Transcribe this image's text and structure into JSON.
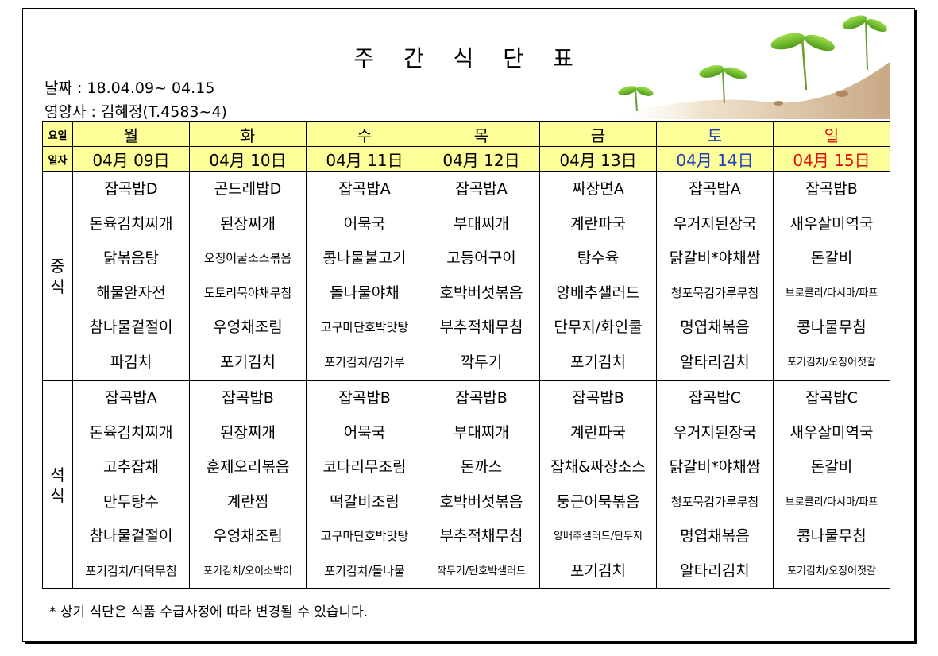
{
  "title": "주 간 식 단 표",
  "date_line": "날짜 : 18.04.09~ 04.15",
  "nutritionist_line": "영양사 : 김혜정(T.4583~4)",
  "row_labels": {
    "day": "요일",
    "date": "일자"
  },
  "days": [
    {
      "day": "월",
      "date": "04月 09日"
    },
    {
      "day": "화",
      "date": "04月 10日"
    },
    {
      "day": "수",
      "date": "04月 11日"
    },
    {
      "day": "목",
      "date": "04月 12日"
    },
    {
      "day": "금",
      "date": "04月 13日"
    },
    {
      "day": "토",
      "date": "04月 14日"
    },
    {
      "day": "일",
      "date": "04月 15日"
    }
  ],
  "colors": {
    "header_bg": "#ffff99",
    "saturday": "#1f3fbf",
    "sunday": "#e01010"
  },
  "lunch": {
    "label": "중\n식",
    "menus": [
      [
        "잡곡밥D",
        "돈육김치찌개",
        "닭볶음탕",
        "해물완자전",
        "참나물겉절이",
        "파김치"
      ],
      [
        "곤드레밥D",
        "된장찌개",
        "오징어굴소스볶음",
        "도토리묵야채무침",
        "우엉채조림",
        "포기김치"
      ],
      [
        "잡곡밥A",
        "어묵국",
        "콩나물불고기",
        "돌나물야채",
        "고구마단호박맛탕",
        "포기김치/김가루"
      ],
      [
        "잡곡밥A",
        "부대찌개",
        "고등어구이",
        "호박버섯볶음",
        "부추적채무침",
        "깍두기"
      ],
      [
        "짜장면A",
        "계란파국",
        "탕수육",
        "양배추샐러드",
        "단무지/화인쿨",
        "포기김치"
      ],
      [
        "잡곡밥A",
        "우거지된장국",
        "닭갈비*야채쌈",
        "청포묵김가루무침",
        "명엽채볶음",
        "알타리김치"
      ],
      [
        "잡곡밥B",
        "새우살미역국",
        "돈갈비",
        "브로콜리/다시마/파프",
        "콩나물무침",
        "포기김치/오징어젓갈"
      ]
    ]
  },
  "dinner": {
    "label": "석\n식",
    "menus": [
      [
        "잡곡밥A",
        "돈육김치찌개",
        "고추잡채",
        "만두탕수",
        "참나물겉절이",
        "포기김치/더덕무침"
      ],
      [
        "잡곡밥B",
        "된장찌개",
        "훈제오리볶음",
        "계란찜",
        "우엉채조림",
        "포기김치/오이소박이"
      ],
      [
        "잡곡밥B",
        "어묵국",
        "코다리무조림",
        "떡갈비조림",
        "고구마단호박맛탕",
        "포기김치/돌나물"
      ],
      [
        "잡곡밥B",
        "부대찌개",
        "돈까스",
        "호박버섯볶음",
        "부추적채무침",
        "깍두기/단호박샐러드"
      ],
      [
        "잡곡밥B",
        "계란파국",
        "잡채&짜장소스",
        "둥근어묵볶음",
        "양배추샐러드/단무지",
        "포기김치"
      ],
      [
        "잡곡밥C",
        "우거지된장국",
        "닭갈비*야채쌈",
        "청포묵김가루무침",
        "명엽채볶음",
        "알타리김치"
      ],
      [
        "잡곡밥C",
        "새우살미역국",
        "돈갈비",
        "브로콜리/다시마/파프",
        "콩나물무침",
        "포기김치/오징어젓갈"
      ]
    ]
  },
  "footnote": "* 상기 식단은 식품 수급사정에 따라 변경될 수 있습니다."
}
